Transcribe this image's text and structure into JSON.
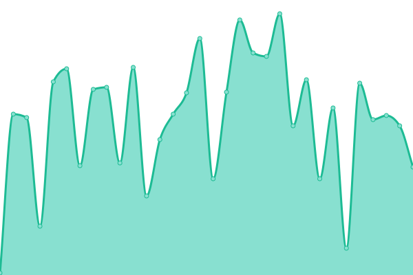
{
  "chart_data": {
    "type": "area",
    "title": "",
    "xlabel": "",
    "ylabel": "",
    "x": [
      0,
      1,
      2,
      3,
      4,
      5,
      6,
      7,
      8,
      9,
      10,
      11,
      12,
      13,
      14,
      15,
      16,
      17,
      18,
      19,
      20,
      21,
      22,
      23,
      24,
      25,
      26,
      27,
      28,
      29,
      30,
      31
    ],
    "values": [
      0.75,
      58.5,
      57.25,
      17.75,
      70.25,
      75,
      39.75,
      67.5,
      68.25,
      40.75,
      75.5,
      28.75,
      49.25,
      58.5,
      66.25,
      86,
      35,
      66.5,
      92.75,
      80.75,
      79.5,
      95,
      54.25,
      71,
      35,
      60.75,
      9.75,
      69.75,
      56.5,
      58,
      54.25,
      39.25
    ],
    "ylim": [
      0,
      100
    ],
    "grid": false,
    "axes_visible": false,
    "curve": "monotone",
    "markers": true,
    "colors": {
      "line": "#1dbb94",
      "fill": "#88e0d0",
      "marker_fill": "#88e0d0",
      "marker_stroke": "#1dbb94"
    }
  }
}
